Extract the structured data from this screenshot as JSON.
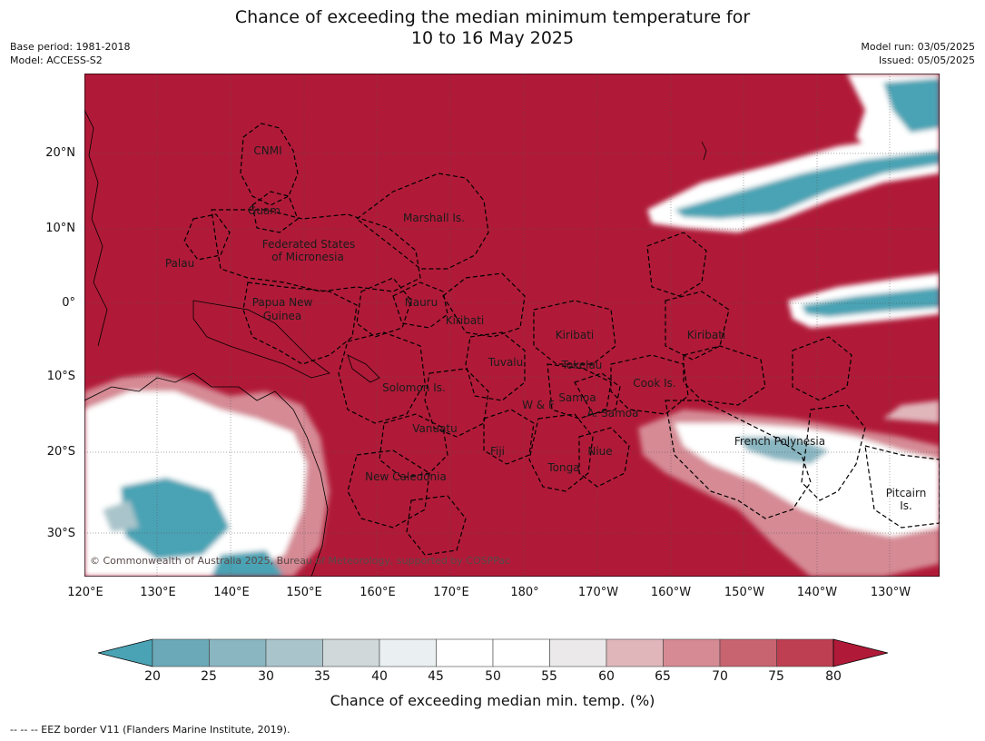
{
  "title": {
    "line1": "Chance of exceeding the median minimum temperature for",
    "line2": "10 to 16 May 2025"
  },
  "meta_left": {
    "base_period": "Base period: 1981-2018",
    "model": "Model: ACCESS-S2"
  },
  "meta_right": {
    "model_run": "Model run: 03/05/2025",
    "issued": "Issued: 05/05/2025"
  },
  "map": {
    "copyright": "© Commonwealth of Australia 2025, Bureau of Meteorology, supported by COSPPac",
    "lat_labels": [
      "20°N",
      "10°N",
      "0°",
      "10°S",
      "20°S",
      "30°S"
    ],
    "lon_labels": [
      "120°E",
      "130°E",
      "140°E",
      "150°E",
      "160°E",
      "170°E",
      "180°",
      "170°W",
      "160°W",
      "150°W",
      "140°W",
      "130°W"
    ],
    "regions": {
      "cnmi": "CNMI",
      "guam": "Guam",
      "marshall": "Marshall Is.",
      "fsm1": "Federated States",
      "fsm2": "of Micronesia",
      "palau": "Palau",
      "nauru": "Nauru",
      "png1": "Papua New",
      "png2": "Guinea",
      "kiribati_w": "Kiribati",
      "kiribati_c": "Kiribati",
      "kiribati_e": "Kiribati",
      "tuvalu": "Tuvalu",
      "tokelau": "Tokelau",
      "solomon": "Solomon Is.",
      "cook": "Cook Is.",
      "wf": "W & F",
      "samoa": "Samoa",
      "asamoa": "A. Samoa",
      "vanuatu": "Vanuatu",
      "fiji": "Fiji",
      "niue": "Niue",
      "tonga": "Tonga",
      "frpoly": "French Polynesia",
      "newcal": "New Caledonia",
      "pitcairn1": "Pitcairn",
      "pitcairn2": "Is."
    },
    "colors": {
      "high": "#b01a38",
      "low": "#4aa3b4"
    }
  },
  "colorbar": {
    "ticks": [
      "20",
      "25",
      "30",
      "35",
      "40",
      "45",
      "50",
      "55",
      "60",
      "65",
      "70",
      "75",
      "80"
    ],
    "colors": [
      "#6ba8b8",
      "#89b6c1",
      "#a9c4ca",
      "#d0d8da",
      "#eaf0f1",
      "#ffffff",
      "#ffffff",
      "#ebe9ea",
      "#e0b6bb",
      "#d58a94",
      "#c86370",
      "#bd3f51"
    ],
    "under_color": "#4aa3b4",
    "over_color": "#b01a38",
    "label": "Chance of exceeding median min. temp. (%)"
  },
  "footnote": "--  --  -- EEZ border V11 (Flanders Marine Institute, 2019)."
}
